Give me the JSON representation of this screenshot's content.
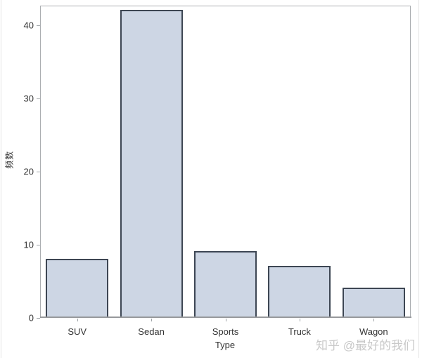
{
  "chart_data": {
    "type": "bar",
    "title": "",
    "categories": [
      "SUV",
      "Sedan",
      "Sports",
      "Truck",
      "Wagon"
    ],
    "values": [
      8,
      42,
      9,
      7,
      4
    ],
    "xlabel": "Type",
    "ylabel": "频数",
    "ylim": [
      0,
      42.7
    ],
    "yticks": [
      0,
      10,
      20,
      30,
      40
    ],
    "grid": false,
    "legend": "none",
    "colors": {
      "bar_fill": "#cdd6e4",
      "bar_border": "#3d4653",
      "axis_line": "#97999c",
      "tick_mark": "#9da2a6",
      "text": "#333333"
    }
  },
  "watermark": {
    "text": "知乎 @最好的我们",
    "color": "#c9c9c9"
  }
}
